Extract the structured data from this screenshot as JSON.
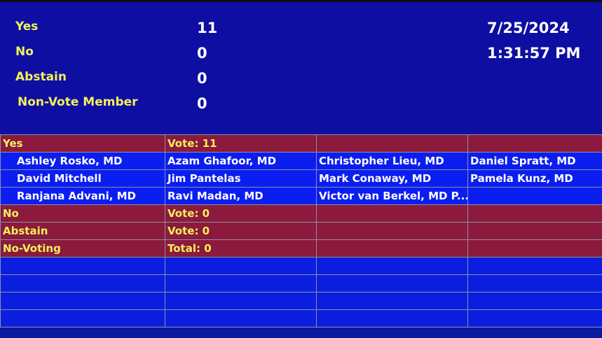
{
  "summary": {
    "yes_label": "Yes",
    "yes_value": "11",
    "no_label": "No",
    "no_value": "0",
    "abstain_label": "Abstain",
    "abstain_value": "0",
    "nonvote_label": "Non-Vote Member",
    "nonvote_value": "0",
    "date": "7/25/2024",
    "time": "1:31:57 PM"
  },
  "grid": {
    "yes": {
      "label": "Yes",
      "count": "Vote: 11",
      "members": [
        [
          "Ashley Rosko, MD",
          "Azam Ghafoor, MD",
          "Christopher Lieu, MD",
          "Daniel Spratt, MD"
        ],
        [
          "David Mitchell",
          "Jim Pantelas",
          "Mark Conaway, MD",
          "Pamela Kunz, MD"
        ],
        [
          "Ranjana Advani, MD",
          "Ravi Madan, MD",
          "Victor van Berkel, MD P...",
          ""
        ]
      ]
    },
    "no": {
      "label": "No",
      "count": "Vote: 0"
    },
    "abstain": {
      "label": "Abstain",
      "count": "Vote: 0"
    },
    "nonvoting": {
      "label": "No-Voting",
      "count": "Total: 0"
    }
  },
  "colors": {
    "summary_bg": "#0e0ea3",
    "header_row": "#8b1a3c",
    "member_row": "#0b1ef0",
    "label_yellow": "#f4f05a"
  }
}
